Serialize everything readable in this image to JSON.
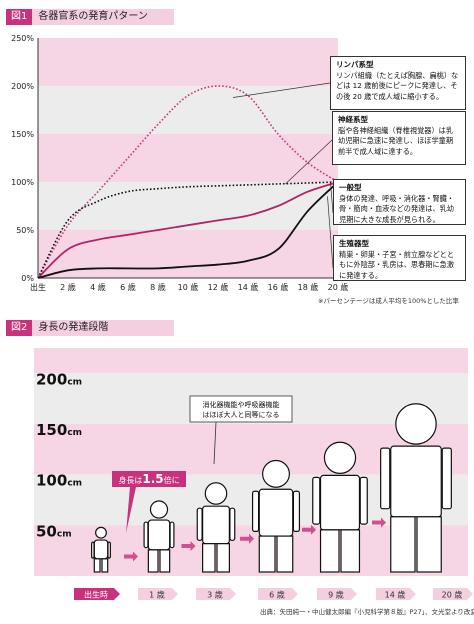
{
  "figure1": {
    "badge": "図1",
    "title": "各器官系の発育パターン",
    "note": "※パーセンテージは成人平均を100%とした比率"
  },
  "figure2": {
    "badge": "図2",
    "title": "身長の発達段階",
    "note": "出典：矢田純一・中山健太郎編『小児科学第８版』P27」、文光堂より改変",
    "height_unit": "cm",
    "height_ticks": [
      "200",
      "150",
      "100",
      "50"
    ],
    "callout_growth_prefix": "身長は",
    "callout_growth_value": "1.5",
    "callout_growth_suffix": "倍に",
    "callout_organs": "消化器機能や呼吸器機能\nはほぼ大人と同等になる",
    "ages": [
      "出生時",
      "1 歳",
      "3 歳",
      "6 歳",
      "9 歳",
      "14 歳",
      "20 歳"
    ],
    "age_colors": {
      "highlight": "#c8327d",
      "normal": "#f3cfe0"
    }
  },
  "chart_data": [
    {
      "type": "line",
      "title": "各器官系の発育パターン",
      "xlabel": "",
      "ylabel": "",
      "x": [
        "出生",
        "2 歳",
        "4 歳",
        "6 歳",
        "8 歳",
        "10 歳",
        "12 歳",
        "14 歳",
        "16 歳",
        "18 歳",
        "20 歳"
      ],
      "x_values": [
        0,
        2,
        4,
        6,
        8,
        10,
        12,
        14,
        16,
        18,
        20
      ],
      "y_ticks": [
        "0%",
        "50%",
        "100%",
        "150%",
        "200%",
        "250%"
      ],
      "ylim": [
        0,
        250
      ],
      "grid": false,
      "series": [
        {
          "name": "リンパ系型",
          "style": "dotted",
          "color": "#c8327d",
          "values": [
            0,
            55,
            90,
            125,
            160,
            190,
            200,
            190,
            150,
            120,
            100
          ]
        },
        {
          "name": "神経系型",
          "style": "dotted",
          "color": "#111111",
          "values": [
            0,
            60,
            80,
            90,
            93,
            95,
            96,
            97,
            98,
            99,
            100
          ]
        },
        {
          "name": "一般型",
          "style": "solid",
          "color": "#b0246a",
          "values": [
            0,
            30,
            40,
            45,
            50,
            55,
            60,
            65,
            75,
            90,
            100
          ]
        },
        {
          "name": "生殖器型",
          "style": "solid",
          "color": "#111111",
          "values": [
            0,
            8,
            10,
            10,
            10,
            12,
            14,
            18,
            30,
            70,
            100
          ]
        }
      ],
      "legend": [
        {
          "name": "リンパ系型",
          "desc": "リンパ組織（たとえば胸腺、扁桃）などは 12 歳前後にピークに発達し、その後 20 歳で成人域に縮小する。"
        },
        {
          "name": "神経系型",
          "desc": "脳や各神経組織（脊椎視覚器）は乳幼児期に急速に発達し、ほぼ学童期前半で成人域に達する。"
        },
        {
          "name": "一般型",
          "desc": "身体の発達、呼吸・消化器・腎臓・骨・筋肉・血液などの発達は、乳幼児期に大きな成長が見られる。"
        },
        {
          "name": "生殖器型",
          "desc": "精巣・卵巣・子宮・前立腺などとともに外陰部・乳房は、思春期に急激に発達する。"
        }
      ]
    }
  ]
}
